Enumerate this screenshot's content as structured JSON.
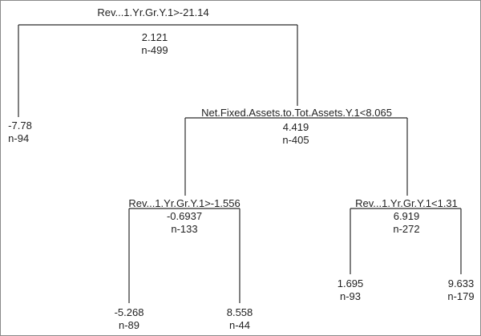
{
  "tree": {
    "root": {
      "split": "Rev...1.Yr.Gr.Y.1>-21.14",
      "value": "2.121",
      "n": "n-499"
    },
    "leaf_a": {
      "value": "-7.78",
      "n": "n-94"
    },
    "node_b": {
      "split": "Net.Fixed.Assets.to.Tot.Assets.Y.1<8.065",
      "value": "4.419",
      "n": "n-405"
    },
    "node_c": {
      "split": "Rev...1.Yr.Gr.Y.1>-1.556",
      "value": "-0.6937",
      "n": "n-133"
    },
    "node_d": {
      "split": "Rev...1.Yr.Gr.Y.1<1.31",
      "value": "6.919",
      "n": "n-272"
    },
    "leaf_c1": {
      "value": "-5.268",
      "n": "n-89"
    },
    "leaf_c2": {
      "value": "8.558",
      "n": "n-44"
    },
    "leaf_d1": {
      "value": "1.695",
      "n": "n-93"
    },
    "leaf_d2": {
      "value": "9.633",
      "n": "n-179"
    }
  }
}
